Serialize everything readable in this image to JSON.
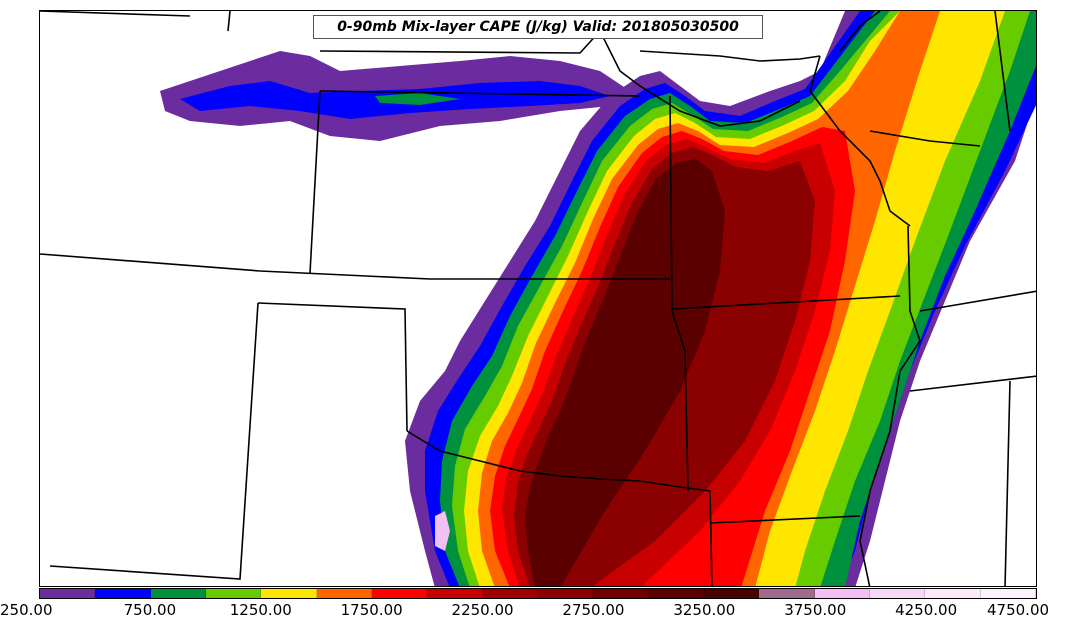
{
  "title": "0-90mb Mix-layer CAPE (J/kg) Valid: 201805030500",
  "colorbar": {
    "colors": [
      "#6a2c9e",
      "#0000ff",
      "#00913f",
      "#66cc00",
      "#ffe600",
      "#ff6600",
      "#ff0000",
      "#c80000",
      "#a00000",
      "#8b0000",
      "#700000",
      "#5a0000",
      "#4a0000",
      "#a06a8a",
      "#f2c0f2",
      "#f8d8f8",
      "#fbeafb",
      "#fdf3fd"
    ],
    "labels": [
      "250.00",
      "750.00",
      "1250.00",
      "1750.00",
      "2250.00",
      "2750.00",
      "3250.00",
      "3750.00",
      "4250.00",
      "4750.00"
    ]
  },
  "map": {
    "region": "Central United States",
    "field": "CAPE",
    "units": "J/kg"
  }
}
